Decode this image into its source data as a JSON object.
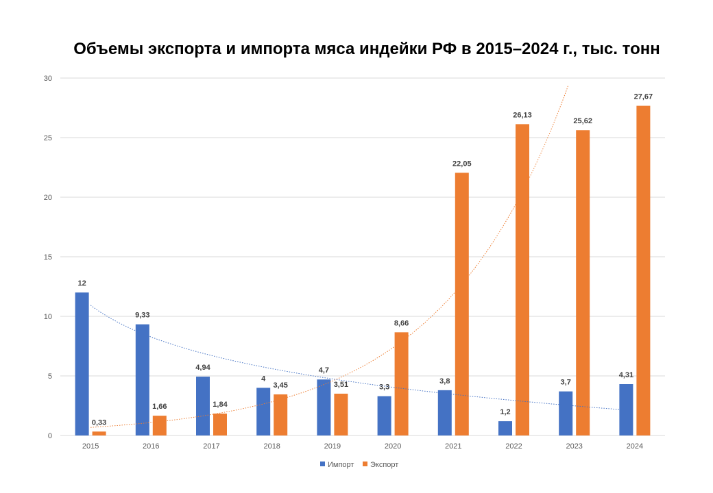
{
  "chart_data": {
    "type": "bar",
    "title": "Объемы экспорта и импорта мяса индейки РФ в 2015–2024  г., тыс. тонн",
    "categories": [
      "2015",
      "2016",
      "2017",
      "2018",
      "2019",
      "2020",
      "2021",
      "2022",
      "2023",
      "2024"
    ],
    "series": [
      {
        "name": "Импорт",
        "color": "#4472C4",
        "values": [
          12,
          9.33,
          4.94,
          4,
          4.7,
          3.3,
          3.8,
          1.2,
          3.7,
          4.31
        ],
        "labels": [
          "12",
          "9,33",
          "4,94",
          "4",
          "4,7",
          "3,3",
          "3,8",
          "1,2",
          "3,7",
          "4,31"
        ],
        "trendline": "logarithmic"
      },
      {
        "name": "Экспорт",
        "color": "#ED7D31",
        "values": [
          0.33,
          1.66,
          1.84,
          3.45,
          3.51,
          8.66,
          22.05,
          26.13,
          25.62,
          27.67
        ],
        "labels": [
          "0,33",
          "1,66",
          "1,84",
          "3,45",
          "3,51",
          "8,66",
          "22,05",
          "26,13",
          "25,62",
          "27,67"
        ],
        "trendline": "exponential"
      }
    ],
    "ylim": [
      0,
      30
    ],
    "yticks": [
      "0",
      "5",
      "10",
      "15",
      "20",
      "25",
      "30"
    ],
    "grid": true,
    "legend": "bottom",
    "xlabel": "",
    "ylabel": ""
  }
}
